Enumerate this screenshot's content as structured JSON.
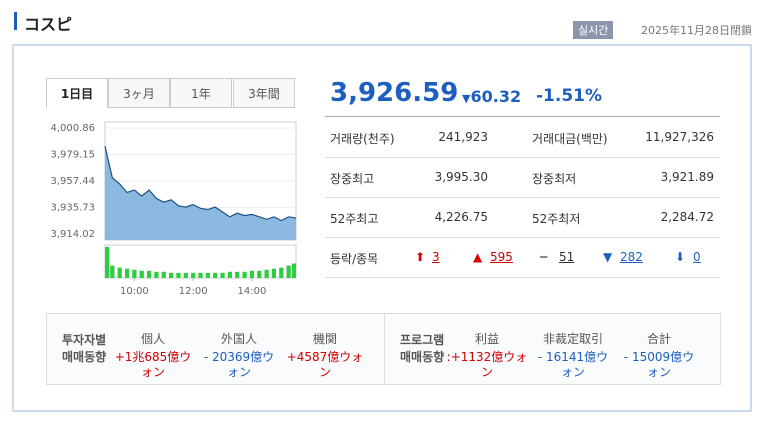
{
  "header": {
    "title": "コスピ",
    "badge": "실시간",
    "date": "2025年11月28日閉鎖"
  },
  "tabs": [
    "1日目",
    "3ヶ月",
    "1年",
    "3年間"
  ],
  "chart_data": {
    "type": "area",
    "color": "#6fa8d8",
    "x": [
      "09:00",
      "09:15",
      "09:30",
      "09:45",
      "10:00",
      "10:15",
      "10:30",
      "10:45",
      "11:00",
      "11:15",
      "11:30",
      "11:45",
      "12:00",
      "12:15",
      "12:30",
      "12:45",
      "13:00",
      "13:15",
      "13:30",
      "13:45",
      "14:00",
      "14:15",
      "14:30",
      "14:45",
      "15:00",
      "15:15",
      "15:30"
    ],
    "values": [
      3986,
      3960,
      3955,
      3948,
      3950,
      3945,
      3950,
      3943,
      3940,
      3942,
      3937,
      3936,
      3938,
      3935,
      3934,
      3936,
      3932,
      3928,
      3931,
      3929,
      3930,
      3928,
      3926,
      3928,
      3925,
      3928,
      3927
    ],
    "volume": [
      30,
      12,
      10,
      9,
      8,
      7,
      7,
      6,
      6,
      5,
      5,
      5,
      5,
      5,
      5,
      5,
      5,
      6,
      6,
      6,
      7,
      7,
      8,
      9,
      10,
      12,
      14
    ],
    "volume_color": "#2ecc40",
    "xlim": [
      "09:00",
      "15:30"
    ],
    "xticks": [
      "10:00",
      "12:00",
      "14:00"
    ],
    "ylim": [
      3909,
      4005.8
    ],
    "yticks": [
      {
        "value": 4000.86,
        "label": "4,000.86"
      },
      {
        "value": 3979.15,
        "label": "3,979.15"
      },
      {
        "value": 3957.44,
        "label": "3,957.44"
      },
      {
        "value": 3935.73,
        "label": "3,935.73"
      },
      {
        "value": 3914.02,
        "label": "3,914.02"
      }
    ]
  },
  "quote": {
    "price": "3,926.59",
    "change": "60.32",
    "percent": "-1.51%"
  },
  "stats": [
    [
      "거래량(천주)",
      "241,923",
      "거래대금(백만)",
      "11,927,326"
    ],
    [
      "장중최고",
      "3,995.30",
      "장중최저",
      "3,921.89"
    ],
    [
      "52주최고",
      "4,226.75",
      "52주최저",
      "2,284.72"
    ]
  ],
  "updown": {
    "label": "등락/종목",
    "counts": [
      "3",
      "595",
      "51",
      "282",
      "0"
    ]
  },
  "investors": {
    "label": [
      "투자자별",
      "매매동향"
    ],
    "columns": [
      "個人",
      "外国人",
      "機関"
    ],
    "values": [
      "+1兆685億ウォン",
      "- 20369億ウォン",
      "+4587億ウォン"
    ]
  },
  "program": {
    "label": [
      "프로그램",
      "매매동향"
    ],
    "columns": [
      "利益",
      "非裁定取引",
      "合計"
    ],
    "values": [
      ":+1132億ウォン",
      "- 16141億ウォン",
      "- 15009億ウォン"
    ]
  }
}
